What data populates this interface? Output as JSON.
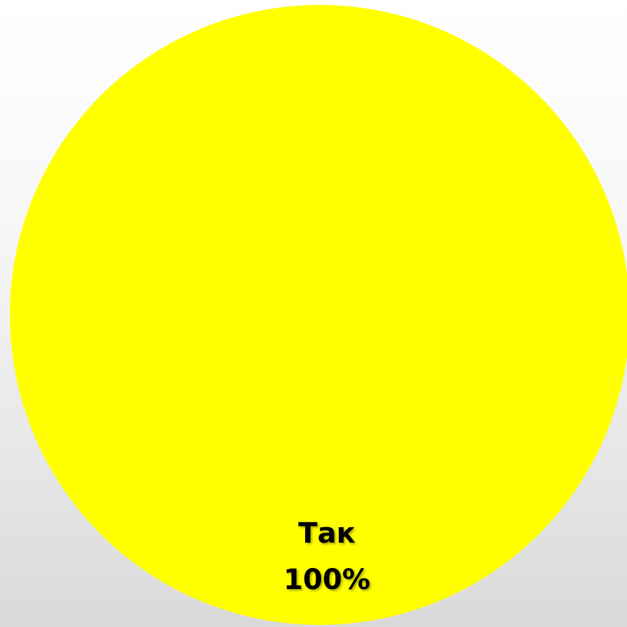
{
  "chart_data": {
    "type": "pie",
    "categories": [
      "Так"
    ],
    "values": [
      100
    ],
    "data_labels": [
      "100%"
    ],
    "colors": [
      "#ffff00"
    ],
    "title": "",
    "legend": "none"
  }
}
